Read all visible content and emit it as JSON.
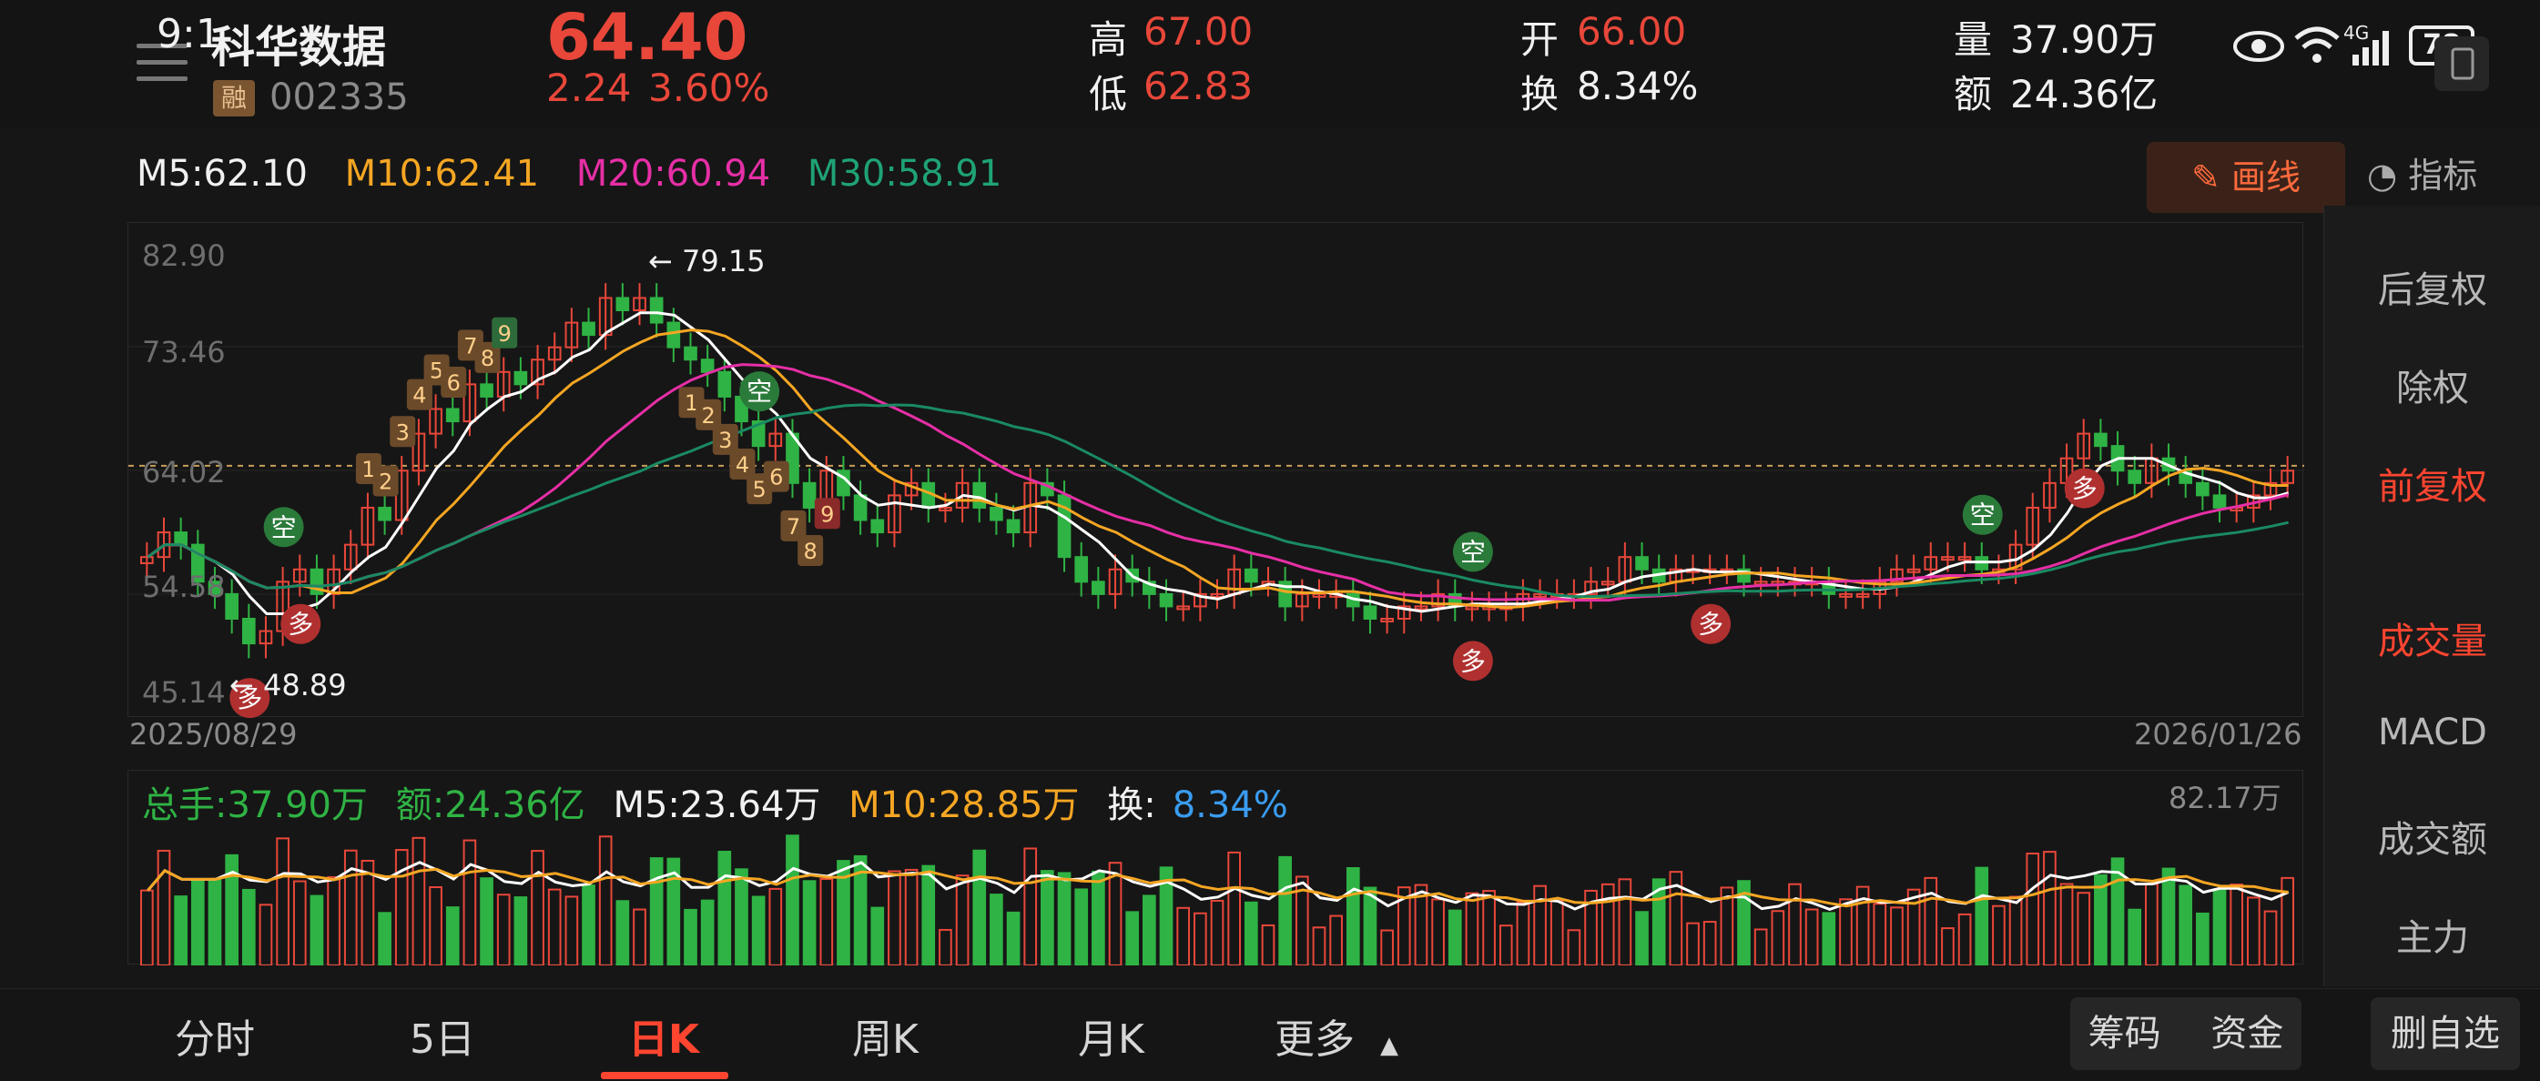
{
  "header": {
    "time": "9:1",
    "stock_name": "科华数据",
    "badge": "融",
    "code": "002335",
    "price": "64.40",
    "change": "2.24",
    "change_pct": "3.60%",
    "high_label": "高",
    "high": "67.00",
    "low_label": "低",
    "low": "62.83",
    "open_label": "开",
    "open": "66.00",
    "turnover_label": "换",
    "turnover": "8.34%",
    "volume_label": "量",
    "volume": "37.90万",
    "amount_label": "额",
    "amount": "24.36亿",
    "battery": "78",
    "network": "4G"
  },
  "ma_legend": {
    "m5": "M5:62.10",
    "m10": "M10:62.41",
    "m20": "M20:60.94",
    "m30": "M30:58.91",
    "colors": {
      "m5": "#ffffff",
      "m10": "#f5a623",
      "m20": "#e62fa6",
      "m30": "#1a8a62"
    }
  },
  "draw_button": "画线",
  "indicator_label": "指标",
  "right_panel": {
    "items": [
      "后复权",
      "除权",
      "前复权",
      "成交量",
      "MACD",
      "成交额",
      "主力"
    ],
    "active": [
      "前复权",
      "成交量"
    ]
  },
  "chart_data": {
    "type": "candlestick",
    "y_ticks": [
      "82.90",
      "73.46",
      "64.02",
      "54.58",
      "45.14"
    ],
    "ylim": [
      45.14,
      82.9
    ],
    "current_price_line": 64.4,
    "start_date": "2025/08/29",
    "end_date": "2026/01/26",
    "max_annotation": "79.15",
    "min_annotation": "48.89",
    "candles_close": [
      57,
      59,
      58,
      55,
      54,
      52,
      50,
      51,
      55,
      56,
      54,
      56,
      58,
      61,
      60,
      64,
      67,
      69,
      68,
      71,
      70,
      72,
      71,
      73,
      74,
      76,
      75,
      78,
      77,
      78,
      76,
      74,
      73,
      72,
      70,
      68,
      66,
      67,
      63,
      61,
      64,
      62,
      60,
      59,
      62,
      63,
      61,
      61,
      63,
      61,
      60,
      59,
      63,
      62,
      57,
      55,
      54,
      56,
      55,
      54,
      53,
      53,
      54,
      54,
      56,
      55,
      55,
      53,
      54,
      54,
      54,
      53,
      52,
      52,
      53,
      53,
      54,
      53,
      53,
      53,
      53,
      54,
      54,
      54,
      54,
      55,
      55,
      57,
      56,
      55,
      56,
      56,
      56,
      56,
      55,
      55,
      55,
      55,
      55,
      54,
      54,
      54,
      55,
      56,
      56,
      57,
      57,
      57,
      56,
      56,
      58,
      61,
      63,
      65,
      67,
      66,
      64,
      63,
      65,
      64,
      63,
      62,
      61,
      61,
      62,
      63,
      64
    ],
    "volume": {
      "total_hand": "总手:37.90万",
      "amount": "额:24.36亿",
      "m5": "M5:23.64万",
      "m10": "M10:28.85万",
      "turnover_label": "换:",
      "turnover": "8.34%",
      "max_label": "82.17万"
    },
    "buy_signals": [
      "多",
      "多",
      "多",
      "多",
      "多",
      "多"
    ],
    "sell_signals": [
      "空",
      "空",
      "空",
      "空",
      "空",
      "空"
    ],
    "td_up": [
      "1",
      "2",
      "3",
      "4",
      "5",
      "6",
      "7",
      "8",
      "9"
    ],
    "td_down": [
      "1",
      "2",
      "3",
      "4",
      "5",
      "6",
      "7",
      "8",
      "9"
    ]
  },
  "tabs": [
    "分时",
    "5日",
    "日K",
    "周K",
    "月K",
    "更多"
  ],
  "active_tab": "日K",
  "tools": {
    "chips": "筹码",
    "funds": "资金",
    "remove_watch": "删自选"
  }
}
